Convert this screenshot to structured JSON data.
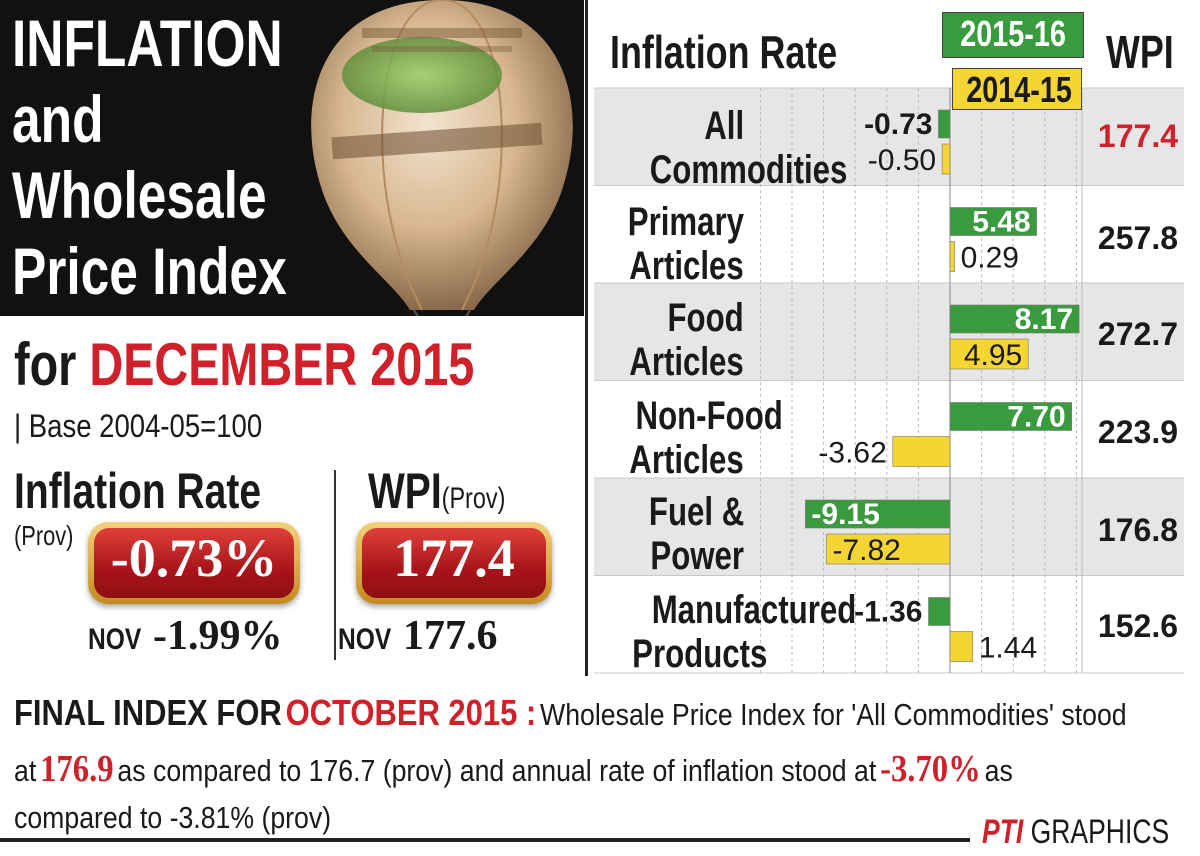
{
  "title": {
    "line1": "INFLATION",
    "line2": "and",
    "line3": "Wholesale",
    "line4": "Price Index"
  },
  "period": {
    "prefix": "for",
    "month_year": "DECEMBER 2015",
    "base": "| Base 2004-05=100"
  },
  "headline": {
    "inflation": {
      "label": "Inflation Rate",
      "sub": "(Prov)",
      "value": "-0.73%",
      "prev_label": "NOV",
      "prev_value": "-1.99%"
    },
    "wpi": {
      "label": "WPI",
      "sub": "(Prov)",
      "value": "177.4",
      "prev_label": "NOV",
      "prev_value": "177.6"
    }
  },
  "chart_data": {
    "type": "bar",
    "orientation": "horizontal",
    "title": "Inflation Rate",
    "wpi_header": "WPI",
    "categories": [
      "All Commodities",
      "Primary Articles",
      "Food Articles",
      "Non-Food Articles",
      "Fuel & Power",
      "Manufactured Products"
    ],
    "category_lines": [
      [
        "All",
        "Commodities"
      ],
      [
        "Primary",
        "Articles"
      ],
      [
        "Food",
        "Articles"
      ],
      [
        "Non-Food",
        "Articles"
      ],
      [
        "Fuel &",
        "Power"
      ],
      [
        "Manufactured",
        "Products"
      ]
    ],
    "series": [
      {
        "name": "2015-16",
        "color": "#3a9a3e",
        "values": [
          -0.73,
          5.48,
          8.17,
          7.7,
          -9.15,
          -1.36
        ],
        "labels": [
          "-0.73",
          "5.48",
          "8.17",
          "7.70",
          "-9.15",
          "-1.36"
        ]
      },
      {
        "name": "2014-15",
        "color": "#f5d533",
        "values": [
          -0.5,
          0.29,
          4.95,
          -3.62,
          -7.82,
          1.44
        ],
        "labels": [
          "-0.50",
          "0.29",
          "4.95",
          "-3.62",
          "-7.82",
          "1.44"
        ]
      }
    ],
    "wpi_values": [
      "177.4",
      "257.8",
      "272.7",
      "223.9",
      "176.8",
      "152.6"
    ],
    "highlight_row": 0,
    "grid": true,
    "legend_placement": "top"
  },
  "footer": {
    "heading": "FINAL INDEX FOR",
    "heading_month": "OCTOBER 2015 :",
    "text1": "Wholesale Price Index for 'All Commodities' stood",
    "text2a": "at",
    "final_wpi": "176.9",
    "text2b": "as compared to 176.7 (prov) and annual rate of inflation stood at",
    "final_inflation": "-3.70%",
    "text2c": "as",
    "text3": "compared to -3.81% (prov)"
  },
  "credit": {
    "brand": "PTI",
    "label": "GRAPHICS"
  }
}
